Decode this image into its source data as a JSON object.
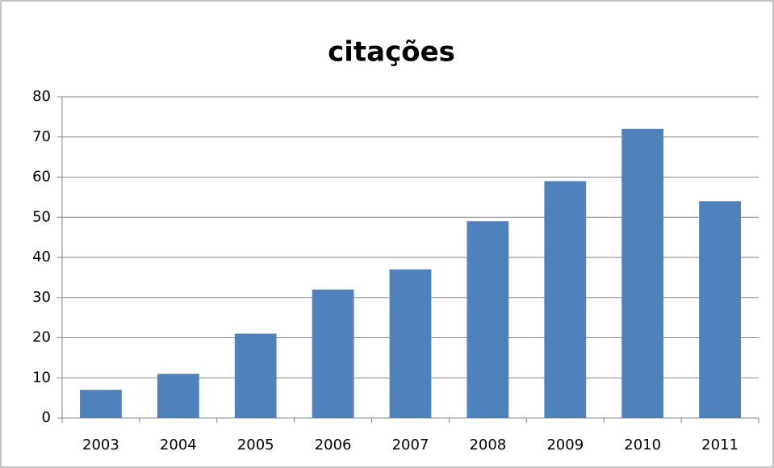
{
  "chart_data": {
    "type": "bar",
    "title": "citações",
    "categories": [
      "2003",
      "2004",
      "2005",
      "2006",
      "2007",
      "2008",
      "2009",
      "2010",
      "2011"
    ],
    "values": [
      7,
      11,
      21,
      32,
      37,
      49,
      59,
      72,
      54
    ],
    "color": "#4f81bd",
    "ylim": [
      0,
      80
    ],
    "yticks": [
      0,
      10,
      20,
      30,
      40,
      50,
      60,
      70,
      80
    ],
    "grid": true
  }
}
